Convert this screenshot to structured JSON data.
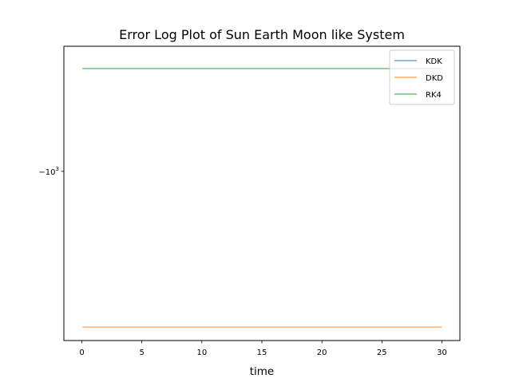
{
  "chart_data": {
    "type": "line",
    "title": "Error Log Plot of Sun Earth Moon like System",
    "xlabel": "time",
    "ylabel": "",
    "x_scale": "linear",
    "y_scale": "symlog",
    "xlim": [
      -1.5,
      31.5
    ],
    "ylim": [
      -6500,
      -250
    ],
    "x_ticks": [
      {
        "value": 0,
        "label": "0"
      },
      {
        "value": 5,
        "label": "5"
      },
      {
        "value": 10,
        "label": "10"
      },
      {
        "value": 15,
        "label": "15"
      },
      {
        "value": 20,
        "label": "20"
      },
      {
        "value": 25,
        "label": "25"
      },
      {
        "value": 30,
        "label": "30"
      }
    ],
    "y_ticks": [
      {
        "value": -1000,
        "label_base": "−10",
        "label_exp": "3"
      }
    ],
    "series": [
      {
        "name": "KDK",
        "color": "#1f77b4",
        "x": [
          0.05,
          30.0
        ],
        "y": [
          -320,
          -320
        ]
      },
      {
        "name": "DKD",
        "color": "#ff7f0e",
        "x": [
          0.05,
          30.0
        ],
        "y": [
          -5600,
          -5600
        ]
      },
      {
        "name": "RK4",
        "color": "#2ca02c",
        "x": [
          0.05,
          30.0
        ],
        "y": [
          -320,
          -320
        ]
      }
    ],
    "legend": {
      "location": "upper right"
    },
    "grid": false
  }
}
